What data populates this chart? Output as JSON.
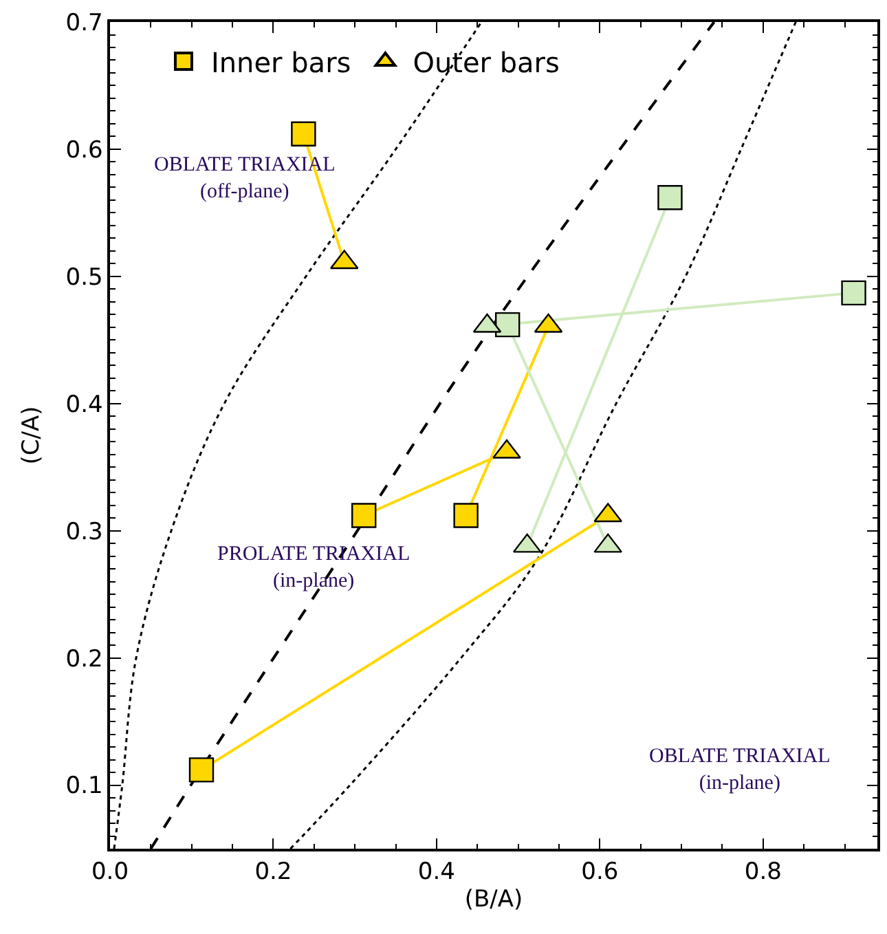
{
  "chart_data": {
    "type": "scatter",
    "xlabel": "(B/A)",
    "ylabel": "(C/A)",
    "xlim": [
      0,
      0.94
    ],
    "ylim": [
      0.05,
      0.7
    ],
    "xticks": [
      {
        "value": 0,
        "label": "0.0"
      },
      0.2,
      0.4,
      0.6,
      0.8
    ],
    "yticks": [
      0.1,
      0.2,
      0.3,
      0.4,
      0.5,
      0.6,
      0.7
    ],
    "legend": "top",
    "series": [
      {
        "type": "line",
        "color": "#000000",
        "line_style": "dashed",
        "marker": "none",
        "x": [
          0.05,
          0.111,
          0.303,
          0.462,
          0.74
        ],
        "values": [
          0.05,
          0.112,
          0.3,
          0.455,
          0.7
        ]
      },
      {
        "type": "line",
        "color": "#000000",
        "line_style": "dotted",
        "marker": "none",
        "x": [
          0.005,
          0.015,
          0.032,
          0.075,
          0.14,
          0.24,
          0.35,
          0.455
        ],
        "values": [
          0.05,
          0.1,
          0.2,
          0.3,
          0.4,
          0.5,
          0.6,
          0.7
        ]
      },
      {
        "type": "line",
        "color": "#000000",
        "line_style": "dotted",
        "marker": "none",
        "x": [
          0.221,
          0.294,
          0.43,
          0.525,
          0.62,
          0.705,
          0.773,
          0.84
        ],
        "values": [
          0.05,
          0.1,
          0.2,
          0.279,
          0.4,
          0.5,
          0.6,
          0.7
        ]
      },
      {
        "type": "line",
        "color": "#ffd700",
        "line_style": "solid",
        "marker": "none",
        "x": [
          0.237,
          0.287
        ],
        "values": [
          0.612,
          0.511
        ]
      },
      {
        "type": "line",
        "color": "#ffd700",
        "line_style": "solid",
        "marker": "none",
        "x": [
          0.311,
          0.486
        ],
        "values": [
          0.312,
          0.362
        ]
      },
      {
        "type": "line",
        "color": "#ffd700",
        "line_style": "solid",
        "marker": "none",
        "x": [
          0.436,
          0.537
        ],
        "values": [
          0.312,
          0.461
        ]
      },
      {
        "type": "line",
        "color": "#ffd700",
        "line_style": "solid",
        "marker": "none",
        "x": [
          0.112,
          0.61
        ],
        "values": [
          0.112,
          0.312
        ]
      },
      {
        "type": "line",
        "color": "#d0ebbe",
        "line_style": "solid",
        "marker": "none",
        "x": [
          0.911,
          0.462
        ],
        "values": [
          0.487,
          0.461
        ]
      },
      {
        "type": "line",
        "color": "#d0ebbe",
        "line_style": "solid",
        "marker": "none",
        "x": [
          0.686,
          0.511
        ],
        "values": [
          0.562,
          0.288
        ]
      },
      {
        "type": "line",
        "color": "#d0ebbe",
        "line_style": "solid",
        "marker": "none",
        "x": [
          0.487,
          0.61
        ],
        "values": [
          0.462,
          0.288
        ]
      },
      {
        "name": "Inner bars",
        "marker": "square",
        "color": "#000000",
        "x": [
          0.237,
          0.311,
          0.436,
          0.112,
          0.911,
          0.686,
          0.487
        ],
        "values": [
          0.612,
          0.312,
          0.312,
          0.112,
          0.487,
          0.562,
          0.462
        ],
        "colors": [
          "#ffd700",
          "#ffd700",
          "#ffd700",
          "#ffd700",
          "#d0ebbe",
          "#d0ebbe",
          "#d0ebbe"
        ]
      },
      {
        "name": "Outer bars",
        "marker": "triangle",
        "color": "#000000",
        "x": [
          0.287,
          0.486,
          0.537,
          0.61,
          0.462,
          0.511,
          0.61
        ],
        "values": [
          0.511,
          0.362,
          0.461,
          0.312,
          0.461,
          0.288,
          0.288
        ],
        "colors": [
          "#ffd700",
          "#ffd700",
          "#ffd700",
          "#ffd700",
          "#d0ebbe",
          "#d0ebbe",
          "#d0ebbe"
        ]
      }
    ],
    "annotations": [
      "OBLATE TRIAXIAL\n(off-plane)",
      "PROLATE TRIAXIAL\n(in-plane)",
      "OBLATE TRIAXIAL\n(in-plane)"
    ]
  }
}
